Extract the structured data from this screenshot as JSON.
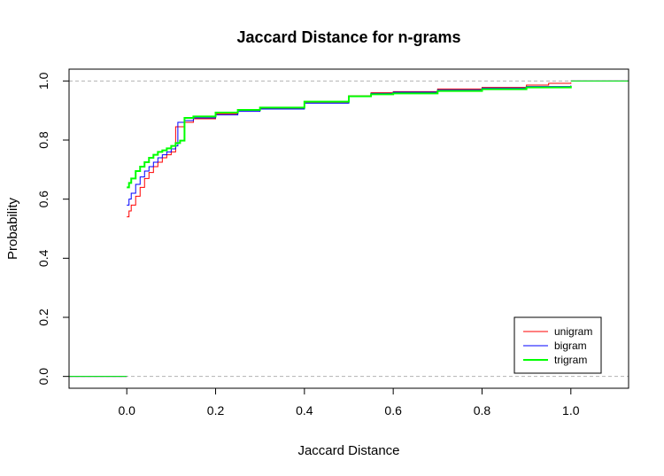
{
  "chart_data": {
    "type": "line",
    "title": "Jaccard Distance for n-grams",
    "xlabel": "Jaccard Distance",
    "ylabel": "Probability",
    "xlim": [
      -0.13,
      1.13
    ],
    "ylim": [
      -0.04,
      1.04
    ],
    "x_ticks": [
      "0.0",
      "0.2",
      "0.4",
      "0.6",
      "0.8",
      "1.0"
    ],
    "y_ticks": [
      "0.0",
      "0.2",
      "0.4",
      "0.6",
      "0.8",
      "1.0"
    ],
    "reference_lines": [
      0,
      1
    ],
    "grid": false,
    "legend_position": "bottom-right",
    "series": [
      {
        "name": "unigram",
        "color": "#ff0000",
        "line_width": 1,
        "points": [
          [
            0.0,
            0.54
          ],
          [
            0.005,
            0.56
          ],
          [
            0.01,
            0.58
          ],
          [
            0.02,
            0.61
          ],
          [
            0.03,
            0.64
          ],
          [
            0.04,
            0.67
          ],
          [
            0.05,
            0.69
          ],
          [
            0.06,
            0.71
          ],
          [
            0.07,
            0.725
          ],
          [
            0.08,
            0.74
          ],
          [
            0.09,
            0.75
          ],
          [
            0.1,
            0.76
          ],
          [
            0.11,
            0.77
          ],
          [
            0.11,
            0.845
          ],
          [
            0.13,
            0.86
          ],
          [
            0.15,
            0.872
          ],
          [
            0.2,
            0.888
          ],
          [
            0.25,
            0.9
          ],
          [
            0.3,
            0.908
          ],
          [
            0.4,
            0.928
          ],
          [
            0.5,
            0.95
          ],
          [
            0.55,
            0.96
          ],
          [
            0.6,
            0.964
          ],
          [
            0.7,
            0.973
          ],
          [
            0.8,
            0.978
          ],
          [
            0.9,
            0.986
          ],
          [
            0.95,
            0.992
          ],
          [
            1.0,
            0.995
          ]
        ]
      },
      {
        "name": "bigram",
        "color": "#0000ff",
        "line_width": 1,
        "points": [
          [
            0.0,
            0.58
          ],
          [
            0.005,
            0.6
          ],
          [
            0.01,
            0.62
          ],
          [
            0.02,
            0.65
          ],
          [
            0.03,
            0.675
          ],
          [
            0.04,
            0.695
          ],
          [
            0.05,
            0.71
          ],
          [
            0.06,
            0.725
          ],
          [
            0.07,
            0.74
          ],
          [
            0.08,
            0.75
          ],
          [
            0.09,
            0.76
          ],
          [
            0.1,
            0.77
          ],
          [
            0.11,
            0.78
          ],
          [
            0.115,
            0.79
          ],
          [
            0.115,
            0.86
          ],
          [
            0.13,
            0.866
          ],
          [
            0.15,
            0.875
          ],
          [
            0.2,
            0.885
          ],
          [
            0.25,
            0.897
          ],
          [
            0.3,
            0.905
          ],
          [
            0.4,
            0.925
          ],
          [
            0.5,
            0.947
          ],
          [
            0.55,
            0.958
          ],
          [
            0.6,
            0.962
          ],
          [
            0.7,
            0.97
          ],
          [
            0.8,
            0.976
          ],
          [
            0.9,
            0.981
          ],
          [
            1.0,
            0.985
          ]
        ]
      },
      {
        "name": "trigram",
        "color": "#00ff00",
        "line_width": 2,
        "points": [
          [
            0.0,
            0.64
          ],
          [
            0.005,
            0.655
          ],
          [
            0.01,
            0.67
          ],
          [
            0.02,
            0.695
          ],
          [
            0.03,
            0.71
          ],
          [
            0.04,
            0.725
          ],
          [
            0.05,
            0.74
          ],
          [
            0.06,
            0.75
          ],
          [
            0.07,
            0.76
          ],
          [
            0.08,
            0.765
          ],
          [
            0.09,
            0.772
          ],
          [
            0.1,
            0.78
          ],
          [
            0.11,
            0.79
          ],
          [
            0.12,
            0.798
          ],
          [
            0.13,
            0.805
          ],
          [
            0.13,
            0.875
          ],
          [
            0.15,
            0.88
          ],
          [
            0.2,
            0.893
          ],
          [
            0.25,
            0.902
          ],
          [
            0.3,
            0.91
          ],
          [
            0.4,
            0.93
          ],
          [
            0.5,
            0.948
          ],
          [
            0.55,
            0.955
          ],
          [
            0.6,
            0.958
          ],
          [
            0.7,
            0.966
          ],
          [
            0.8,
            0.972
          ],
          [
            0.9,
            0.978
          ],
          [
            1.0,
            0.983
          ]
        ]
      }
    ]
  }
}
